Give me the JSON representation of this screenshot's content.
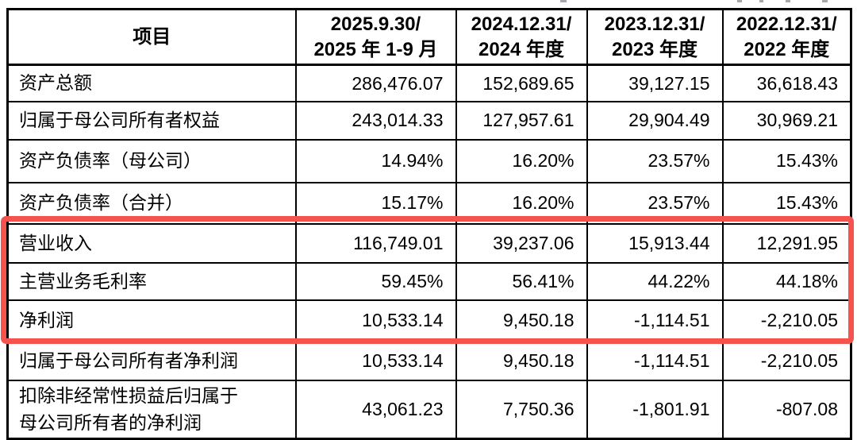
{
  "table": {
    "unit_note": "",
    "header": {
      "item_label": "项目",
      "periods": [
        {
          "line1": "2025.9.30/",
          "line2": "2025 年 1-9 月"
        },
        {
          "line1": "2024.12.31/",
          "line2": "2024 年度"
        },
        {
          "line1": "2023.12.31/",
          "line2": "2023 年度"
        },
        {
          "line1": "2022.12.31/",
          "line2": "2022 年度"
        }
      ]
    },
    "rows": [
      {
        "label": "资产总额",
        "values": [
          "286,476.07",
          "152,689.65",
          "39,127.15",
          "36,618.43"
        ],
        "highlighted": false
      },
      {
        "label": "归属于母公司所有者权益",
        "values": [
          "243,014.33",
          "127,957.61",
          "29,904.49",
          "30,969.21"
        ],
        "highlighted": false
      },
      {
        "label": "资产负债率（母公司）",
        "values": [
          "14.94%",
          "16.20%",
          "23.57%",
          "15.43%"
        ],
        "highlighted": false
      },
      {
        "label": "资产负债率（合并）",
        "values": [
          "15.17%",
          "16.20%",
          "23.57%",
          "15.43%"
        ],
        "highlighted": false
      },
      {
        "label": "营业收入",
        "values": [
          "116,749.01",
          "39,237.06",
          "15,913.44",
          "12,291.95"
        ],
        "highlighted": true
      },
      {
        "label": "主营业务毛利率",
        "values": [
          "59.45%",
          "56.41%",
          "44.22%",
          "44.18%"
        ],
        "highlighted": true
      },
      {
        "label": "净利润",
        "values": [
          "10,533.14",
          "9,450.18",
          "-1,114.51",
          "-2,210.05"
        ],
        "highlighted": true
      },
      {
        "label": "归属于母公司所有者净利润",
        "values": [
          "10,533.14",
          "9,450.18",
          "-1,114.51",
          "-2,210.05"
        ],
        "highlighted": false
      },
      {
        "label": "扣除非经常性损益后归属于",
        "label2": "母公司所有者的净利润",
        "values": [
          "43,061.23",
          "7,750.36",
          "-1,801.91",
          "-807.08"
        ],
        "highlighted": false
      }
    ],
    "highlight": {
      "color": "#f4534e",
      "highlighted_row_labels": [
        "营业收入",
        "主营业务毛利率",
        "净利润"
      ]
    },
    "colors": {
      "border": "#000000",
      "text": "#000000",
      "background": "#ffffff"
    }
  }
}
